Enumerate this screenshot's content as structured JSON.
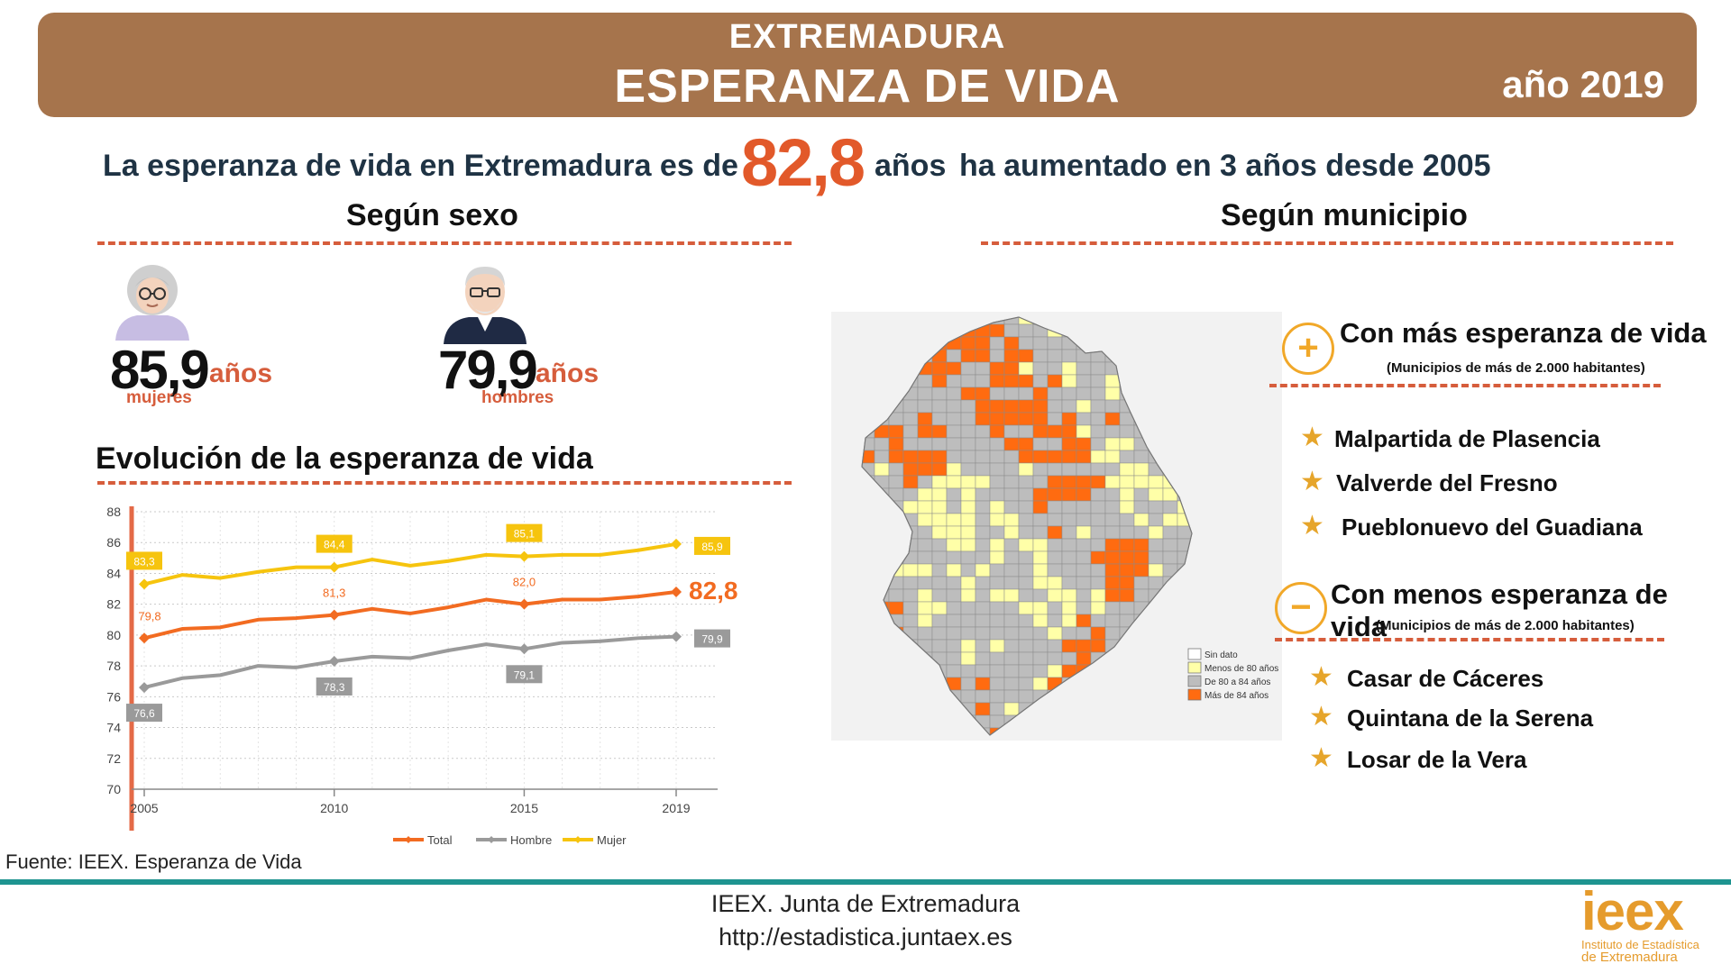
{
  "banner": {
    "region": "EXTREMADURA",
    "title": "ESPERANZA DE VIDA",
    "year": "año 2019"
  },
  "headline": {
    "prefix": "La esperanza de vida en Extremadura es de",
    "value": "82,8",
    "unit": "años",
    "suffix": "ha aumentado en 3 años desde 2005"
  },
  "sexo": {
    "title": "Según  sexo",
    "mujeres": {
      "value": "85,9",
      "unit": "años",
      "label": "mujeres"
    },
    "hombres": {
      "value": "79,9",
      "unit": "años",
      "label": "hombres"
    }
  },
  "evolucion": {
    "title": "Evolución de la esperanza de vida"
  },
  "chart_data": {
    "type": "line",
    "title": "",
    "xlabel": "",
    "ylabel": "",
    "ylim": [
      70,
      88
    ],
    "yticks": [
      "70",
      "72",
      "74",
      "76",
      "78",
      "80",
      "82",
      "84",
      "86",
      "88"
    ],
    "xticks": [
      "2005",
      "2010",
      "2015",
      "2019"
    ],
    "x": [
      2005,
      2006,
      2007,
      2008,
      2009,
      2010,
      2011,
      2012,
      2013,
      2014,
      2015,
      2016,
      2017,
      2018,
      2019
    ],
    "grid": true,
    "legend_position": "bottom",
    "series": [
      {
        "name": "Total",
        "color": "#f26b21",
        "values": [
          79.8,
          80.4,
          80.5,
          81.0,
          81.1,
          81.3,
          81.7,
          81.4,
          81.8,
          82.3,
          82.0,
          82.3,
          82.3,
          82.5,
          82.8
        ],
        "labels": [
          {
            "x": 2005,
            "text": "79,8"
          },
          {
            "x": 2010,
            "text": "81,3"
          },
          {
            "x": 2015,
            "text": "82,0"
          },
          {
            "x": 2019,
            "text": "82,8"
          }
        ]
      },
      {
        "name": "Hombre",
        "color": "#9a9a9a",
        "values": [
          76.6,
          77.2,
          77.4,
          78.0,
          77.9,
          78.3,
          78.6,
          78.5,
          79.0,
          79.4,
          79.1,
          79.5,
          79.6,
          79.8,
          79.9
        ],
        "labels": [
          {
            "x": 2005,
            "text": "76,6"
          },
          {
            "x": 2010,
            "text": "78,3"
          },
          {
            "x": 2015,
            "text": "79,1"
          },
          {
            "x": 2019,
            "text": "79,9"
          }
        ]
      },
      {
        "name": "Mujer",
        "color": "#f6c40e",
        "values": [
          83.3,
          83.9,
          83.7,
          84.1,
          84.4,
          84.4,
          84.9,
          84.5,
          84.8,
          85.2,
          85.1,
          85.2,
          85.2,
          85.5,
          85.9
        ],
        "labels": [
          {
            "x": 2005,
            "text": "83,3"
          },
          {
            "x": 2010,
            "text": "84,4"
          },
          {
            "x": 2015,
            "text": "85,1"
          },
          {
            "x": 2019,
            "text": "85,9"
          }
        ]
      }
    ]
  },
  "municipio": {
    "title": "Según municipio",
    "map_legend": [
      {
        "label": "Sin dato",
        "color": "#ffffff"
      },
      {
        "label": "Menos de 80 años",
        "color": "#ffffa8"
      },
      {
        "label": "De 80 a 84 años",
        "color": "#bdbdbd"
      },
      {
        "label": "Más de 84 años",
        "color": "#ff6b10"
      }
    ],
    "mas": {
      "icon": "plus-circle-icon",
      "title": "Con más esperanza de vida",
      "note": "(Municipios de más de 2.000 habitantes)",
      "items": [
        "Malpartida de Plasencia",
        "Valverde del Fresno",
        "Pueblonuevo del Guadiana"
      ]
    },
    "menos": {
      "icon": "minus-circle-icon",
      "title": "Con menos esperanza de vida",
      "note": "(Municipios de más de 2.000 habitantes)",
      "items": [
        "Casar de Cáceres",
        "Quintana de la Serena",
        "Losar de la Vera"
      ]
    }
  },
  "source": "Fuente: IEEX. Esperanza de Vida",
  "footer": {
    "line1": "IEEX. Junta de Extremadura",
    "line2": "http://estadistica.juntaex.es"
  },
  "logo": {
    "word": "ieex",
    "line1": "Instituto de Estadística",
    "line2": "de Extremadura"
  }
}
